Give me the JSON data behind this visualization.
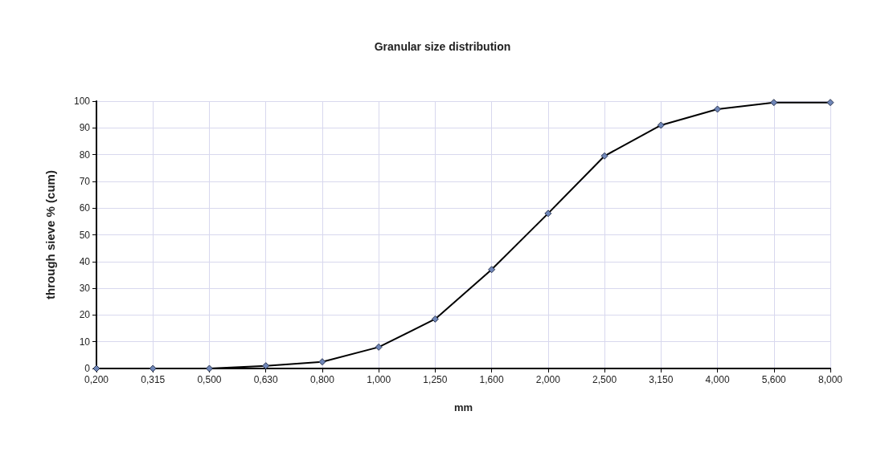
{
  "chart_data": {
    "type": "line",
    "title": "Granular size distribution",
    "xlabel": "mm",
    "ylabel": "through sieve % (cum)",
    "categories": [
      "0,200",
      "0,315",
      "0,500",
      "0,630",
      "0,800",
      "1,000",
      "1,250",
      "1,600",
      "2,000",
      "2,500",
      "3,150",
      "4,000",
      "5,600",
      "8,000"
    ],
    "series": [
      {
        "color": "#000000",
        "values": [
          0,
          0,
          0,
          1,
          2.5,
          8,
          18.5,
          37,
          58,
          79.5,
          91,
          97,
          99.5,
          99.5
        ]
      }
    ],
    "ylim": [
      0,
      100
    ],
    "yticks": [
      0,
      10,
      20,
      30,
      40,
      50,
      60,
      70,
      80,
      90,
      100
    ],
    "grid": true,
    "marker": "diamond",
    "line_style": "solid"
  }
}
